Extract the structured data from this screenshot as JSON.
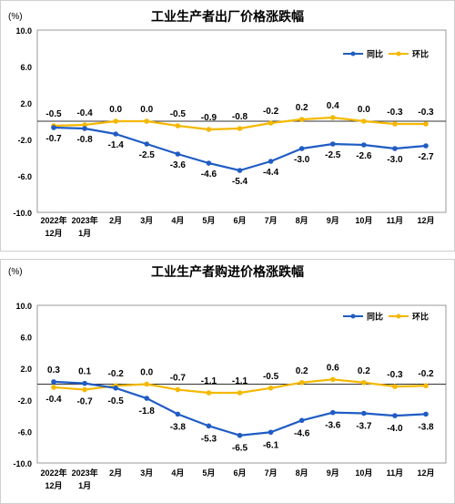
{
  "chart_data": [
    {
      "type": "line",
      "title": "工业生产者出厂价格涨跌幅",
      "unit_label": "(%)",
      "categories": [
        [
          "2022年",
          "12月"
        ],
        [
          "2023年",
          "1月"
        ],
        [
          "2月"
        ],
        [
          "3月"
        ],
        [
          "4月"
        ],
        [
          "5月"
        ],
        [
          "6月"
        ],
        [
          "7月"
        ],
        [
          "8月"
        ],
        [
          "9月"
        ],
        [
          "10月"
        ],
        [
          "11月"
        ],
        [
          "12月"
        ]
      ],
      "y_ticks": [
        "10.0",
        "6.0",
        "2.0",
        "-2.0",
        "-6.0",
        "-10.0"
      ],
      "ylim": [
        -10,
        10
      ],
      "grid": false,
      "legend_position": "top-right",
      "series": [
        {
          "name": "同比",
          "color": "#1f5cc4",
          "values": [
            -0.7,
            -0.8,
            -1.4,
            -2.5,
            -3.6,
            -4.6,
            -5.4,
            -4.4,
            -3.0,
            -2.5,
            -2.6,
            -3.0,
            -2.7
          ],
          "labels": [
            "-0.7",
            "-0.8",
            "-1.4",
            "-2.5",
            "-3.6",
            "-4.6",
            "-5.4",
            "-4.4",
            "-3.0",
            "-2.5",
            "-2.6",
            "-3.0",
            "-2.7"
          ]
        },
        {
          "name": "环比",
          "color": "#f5b800",
          "values": [
            -0.5,
            -0.4,
            0.0,
            0.0,
            -0.5,
            -0.9,
            -0.8,
            -0.2,
            0.2,
            0.4,
            0.0,
            -0.3,
            -0.3
          ],
          "labels": [
            "-0.5",
            "-0.4",
            "0.0",
            "0.0",
            "-0.5",
            "-0.9",
            "-0.8",
            "-0.2",
            "0.2",
            "0.4",
            "0.0",
            "-0.3",
            "-0.3"
          ]
        }
      ]
    },
    {
      "type": "line",
      "title": "工业生产者购进价格涨跌幅",
      "unit_label": "(%)",
      "categories": [
        [
          "2022年",
          "12月"
        ],
        [
          "2023年",
          "1月"
        ],
        [
          "2月"
        ],
        [
          "3月"
        ],
        [
          "4月"
        ],
        [
          "5月"
        ],
        [
          "6月"
        ],
        [
          "7月"
        ],
        [
          "8月"
        ],
        [
          "9月"
        ],
        [
          "10月"
        ],
        [
          "11月"
        ],
        [
          "12月"
        ]
      ],
      "y_ticks": [
        "10.0",
        "6.0",
        "2.0",
        "-2.0",
        "-6.0",
        "-10.0"
      ],
      "ylim": [
        -10,
        10
      ],
      "grid": false,
      "legend_position": "top-right",
      "series": [
        {
          "name": "同比",
          "color": "#1f5cc4",
          "values": [
            0.3,
            0.1,
            -0.5,
            -1.8,
            -3.8,
            -5.3,
            -6.5,
            -6.1,
            -4.6,
            -3.6,
            -3.7,
            -4.0,
            -3.8
          ],
          "labels": [
            "0.3",
            "0.1",
            "-0.5",
            "-1.8",
            "-3.8",
            "-5.3",
            "-6.5",
            "-6.1",
            "-4.6",
            "-3.6",
            "-3.7",
            "-4.0",
            "-3.8"
          ]
        },
        {
          "name": "环比",
          "color": "#f5b800",
          "values": [
            -0.4,
            -0.7,
            -0.2,
            0.0,
            -0.7,
            -1.1,
            -1.1,
            -0.5,
            0.2,
            0.6,
            0.2,
            -0.3,
            -0.2
          ],
          "labels": [
            "-0.4",
            "-0.7",
            "-0.2",
            "0.0",
            "-0.7",
            "-1.1",
            "-1.1",
            "-0.5",
            "0.2",
            "0.6",
            "0.2",
            "-0.3",
            "-0.2"
          ]
        }
      ]
    }
  ]
}
